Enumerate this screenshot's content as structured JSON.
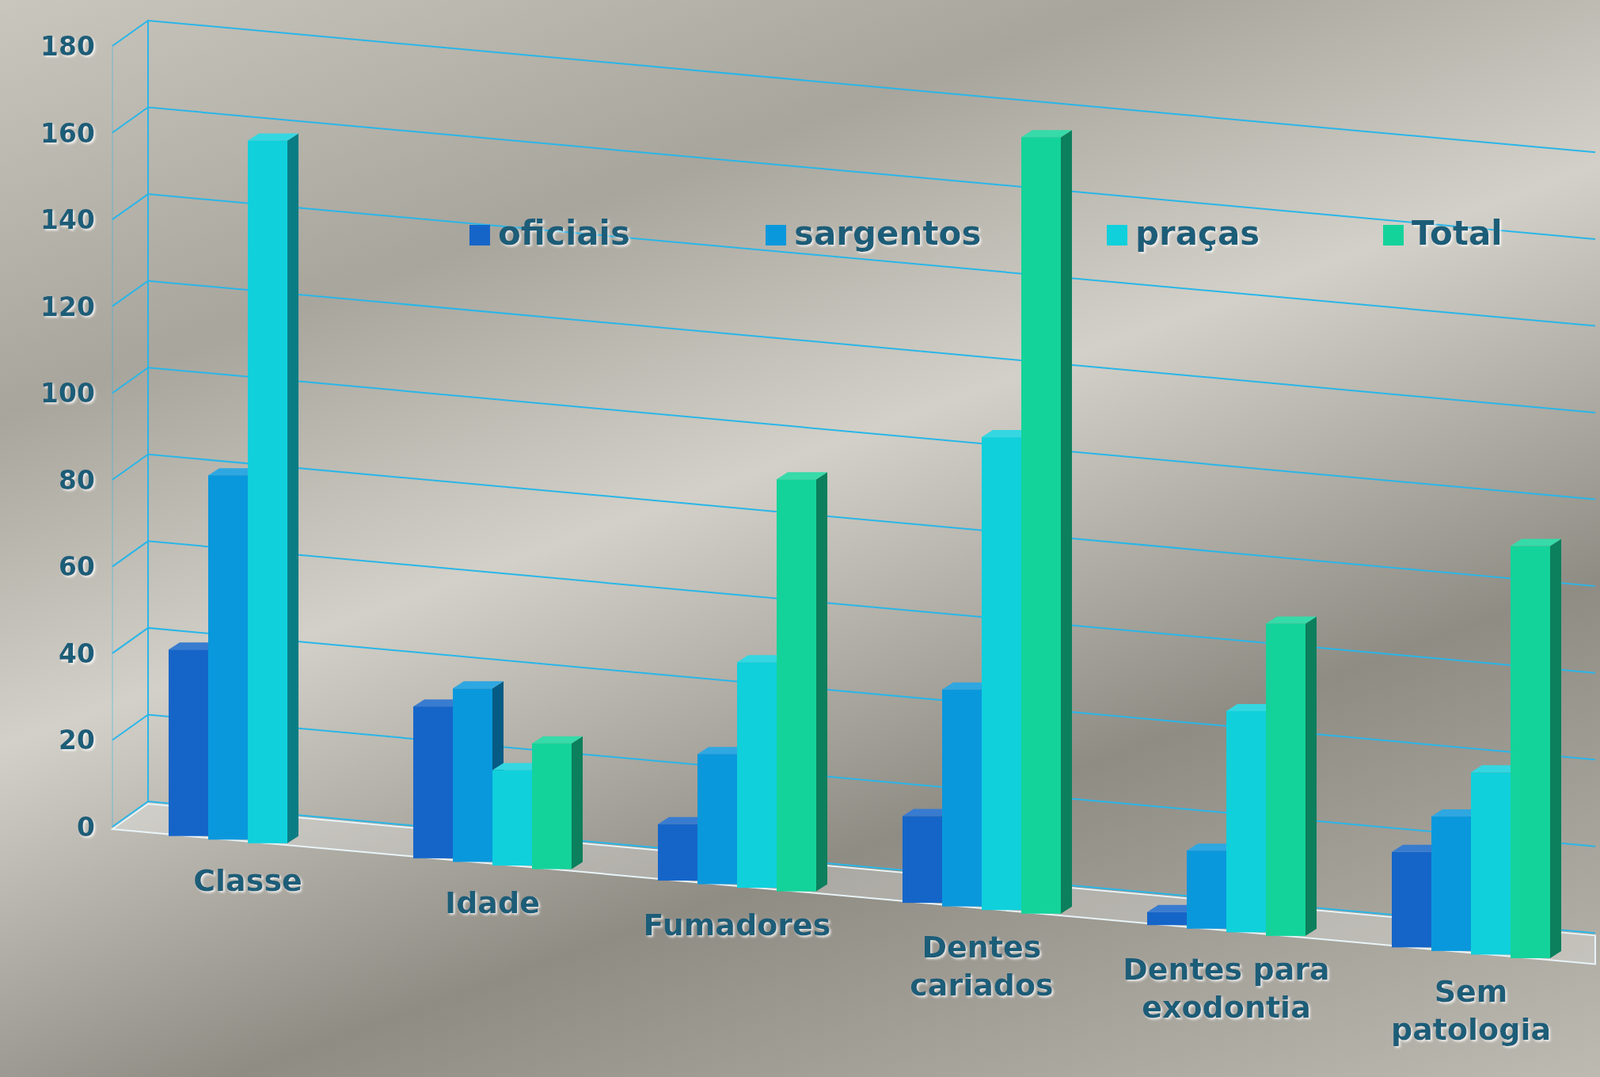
{
  "chart_data": {
    "type": "bar",
    "categories": [
      "Classe",
      "Idade",
      "Fumadores",
      "Dentes cariados",
      "Dentes para exodontia",
      "Sem patologia"
    ],
    "series": [
      {
        "name": "oficiais",
        "color": "#1565c8",
        "values": [
          43,
          35,
          13,
          20,
          3,
          22
        ]
      },
      {
        "name": "sargentos",
        "color": "#0a98dc",
        "values": [
          84,
          40,
          30,
          50,
          18,
          31
        ]
      },
      {
        "name": "praças",
        "color": "#10d0dc",
        "values": [
          162,
          22,
          52,
          109,
          51,
          42
        ]
      },
      {
        "name": "Total",
        "color": "#14d39a",
        "values": [
          null,
          29,
          95,
          179,
          72,
          95
        ]
      }
    ],
    "ylim": [
      0,
      180
    ],
    "yticks": [
      0,
      20,
      40,
      60,
      80,
      100,
      120,
      140,
      160,
      180
    ],
    "grid": true,
    "legend": "top"
  }
}
